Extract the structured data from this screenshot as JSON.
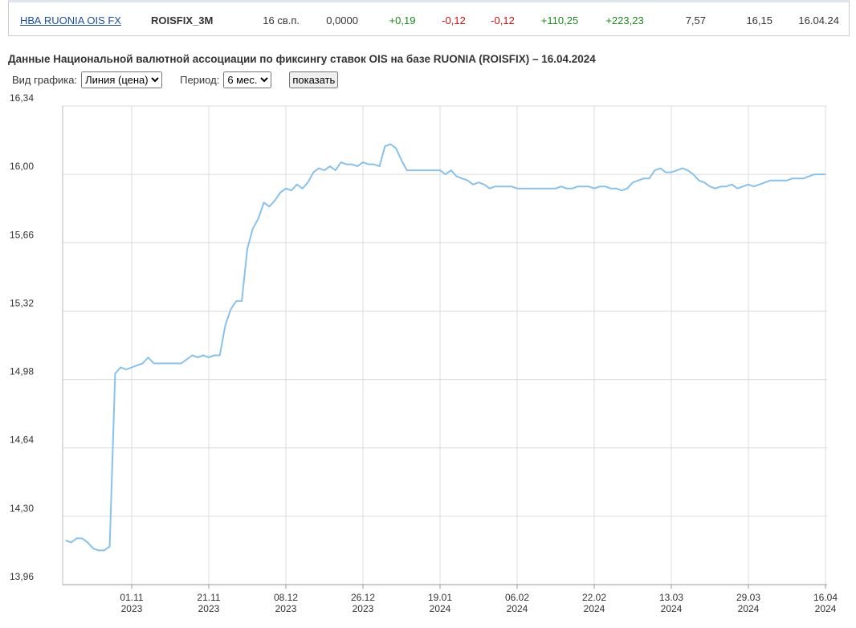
{
  "table": {
    "rows": [
      [
        "НВА RUONIA OIS FX",
        "ROISFIX_3M",
        "16 св.п.",
        "0,0000",
        "+0,19",
        "-0,12",
        "-0,12",
        "+110,25",
        "+223,23",
        "7,57",
        "16,15",
        "16.04.24"
      ]
    ]
  },
  "controls": {
    "chart_type_label": "Вид графика:",
    "chart_type_value": "Линия (цена)",
    "period_label": "Период:",
    "period_value": "6 мес.",
    "button": "показать"
  },
  "chart_data": {
    "type": "line",
    "title": "Данные Национальной валютной ассоциации по фиксингу ставок OIS на базе RUONIA (ROISFIX) – 16.04.2024",
    "color": "#86c2f0",
    "grid": true,
    "ylim": [
      13.96,
      16.34
    ],
    "yticks": [
      {
        "value": 13.96,
        "label": "13,96"
      },
      {
        "value": 14.3,
        "label": "14,30"
      },
      {
        "value": 14.64,
        "label": "14,64"
      },
      {
        "value": 14.98,
        "label": "14,98"
      },
      {
        "value": 15.32,
        "label": "15,32"
      },
      {
        "value": 15.66,
        "label": "15,66"
      },
      {
        "value": 16,
        "label": "16,00"
      },
      {
        "value": 16.34,
        "label": "16,34"
      }
    ],
    "categories": [
      null,
      null,
      null,
      null,
      null,
      null,
      null,
      null,
      null,
      null,
      null,
      null,
      "01.11\n2023",
      null,
      null,
      null,
      null,
      null,
      null,
      null,
      null,
      null,
      null,
      null,
      null,
      null,
      "21.11\n2023",
      null,
      null,
      null,
      null,
      null,
      null,
      null,
      null,
      null,
      null,
      null,
      null,
      null,
      "08.12\n2023",
      null,
      null,
      null,
      null,
      null,
      null,
      null,
      null,
      null,
      null,
      null,
      null,
      null,
      "26.12\n2023",
      null,
      null,
      null,
      null,
      null,
      null,
      null,
      null,
      null,
      null,
      null,
      null,
      null,
      "19.01\n2024",
      null,
      null,
      null,
      null,
      null,
      null,
      null,
      null,
      null,
      null,
      null,
      null,
      null,
      "06.02\n2024",
      null,
      null,
      null,
      null,
      null,
      null,
      null,
      null,
      null,
      null,
      null,
      null,
      null,
      "22.02\n2024",
      null,
      null,
      null,
      null,
      null,
      null,
      null,
      null,
      null,
      null,
      null,
      null,
      null,
      "13.03\n2024",
      null,
      null,
      null,
      null,
      null,
      null,
      null,
      null,
      null,
      null,
      null,
      null,
      null,
      "29.03\n2024",
      null,
      null,
      null,
      null,
      null,
      null,
      null,
      null,
      null,
      null,
      null,
      null,
      null,
      "16.04\n2024"
    ],
    "values": [
      14.18,
      14.17,
      14.19,
      14.19,
      14.17,
      14.14,
      14.13,
      14.13,
      14.15,
      15.01,
      15.04,
      15.03,
      15.04,
      15.05,
      15.06,
      15.09,
      15.06,
      15.06,
      15.06,
      15.06,
      15.06,
      15.06,
      15.08,
      15.1,
      15.09,
      15.1,
      15.09,
      15.1,
      15.1,
      15.25,
      15.33,
      15.37,
      15.37,
      15.63,
      15.73,
      15.78,
      15.86,
      15.84,
      15.87,
      15.91,
      15.93,
      15.92,
      15.95,
      15.93,
      15.96,
      16.01,
      16.03,
      16.02,
      16.04,
      16.02,
      16.06,
      16.05,
      16.05,
      16.04,
      16.06,
      16.05,
      16.05,
      16.04,
      16.14,
      16.15,
      16.13,
      16.07,
      16.02,
      16.02,
      16.02,
      16.02,
      16.02,
      16.02,
      16.02,
      16.0,
      16.02,
      15.99,
      15.98,
      15.97,
      15.95,
      15.96,
      15.95,
      15.93,
      15.94,
      15.94,
      15.94,
      15.94,
      15.93,
      15.93,
      15.93,
      15.93,
      15.93,
      15.93,
      15.93,
      15.93,
      15.94,
      15.93,
      15.93,
      15.94,
      15.94,
      15.94,
      15.93,
      15.94,
      15.94,
      15.93,
      15.93,
      15.92,
      15.93,
      15.96,
      15.97,
      15.98,
      15.98,
      16.02,
      16.03,
      16.01,
      16.01,
      16.02,
      16.03,
      16.02,
      16.0,
      15.97,
      15.96,
      15.94,
      15.93,
      15.94,
      15.94,
      15.95,
      15.93,
      15.94,
      15.95,
      15.94,
      15.95,
      15.96,
      15.97,
      15.97,
      15.97,
      15.97,
      15.98,
      15.98,
      15.98,
      15.99,
      16.0,
      16.0,
      16.0
    ]
  }
}
